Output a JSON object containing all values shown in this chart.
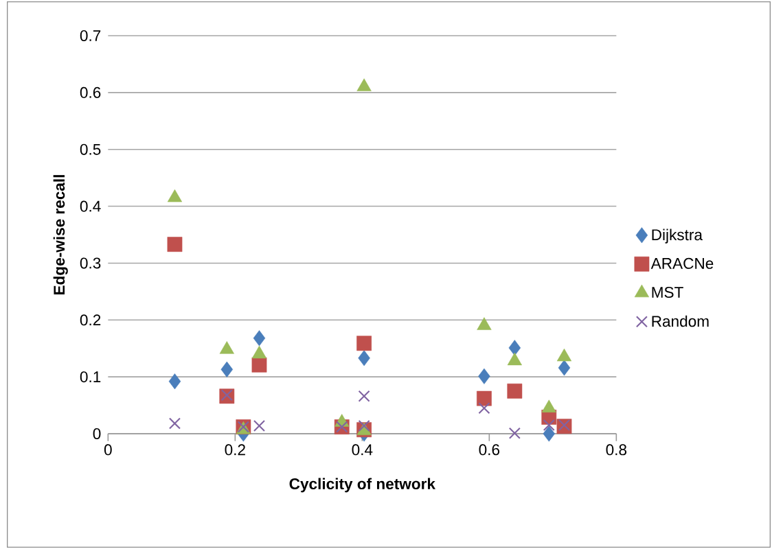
{
  "chart_data": {
    "type": "scatter",
    "xlabel": "Cyclicity of network",
    "ylabel": "Edge-wise recall",
    "x": [
      0.105,
      0.187,
      0.213,
      0.238,
      0.368,
      0.403,
      0.403,
      0.592,
      0.64,
      0.694,
      0.718
    ],
    "series": [
      {
        "name": "Dijkstra",
        "color": "#4a7ebb",
        "marker": "diamond",
        "values": [
          0.092,
          0.113,
          0.0,
          0.168,
          null,
          0.133,
          0.0,
          0.101,
          0.151,
          0.0,
          0.116
        ]
      },
      {
        "name": "ARACNe",
        "color": "#c0504d",
        "marker": "square",
        "values": [
          0.333,
          0.066,
          0.012,
          0.121,
          0.012,
          0.159,
          0.007,
          0.062,
          0.075,
          0.029,
          0.013
        ]
      },
      {
        "name": "MST",
        "color": "#9bbb59",
        "marker": "triangle",
        "values": [
          0.415,
          0.148,
          0.007,
          0.14,
          0.02,
          0.61,
          0.005,
          0.19,
          0.128,
          0.045,
          0.135
        ]
      },
      {
        "name": "Random",
        "color": "#8064a2",
        "marker": "cross",
        "values": [
          0.018,
          0.068,
          0.012,
          0.014,
          0.012,
          0.066,
          0.014,
          0.045,
          0.001,
          0.015,
          0.015
        ]
      }
    ],
    "xlim": [
      0,
      0.8
    ],
    "xticks": [
      0,
      0.2,
      0.4,
      0.6,
      0.8
    ],
    "ylim": [
      0,
      0.7
    ],
    "yticks": [
      0,
      0.1,
      0.2,
      0.3,
      0.4,
      0.5,
      0.6,
      0.7
    ],
    "grid": "y",
    "legend": "right"
  }
}
